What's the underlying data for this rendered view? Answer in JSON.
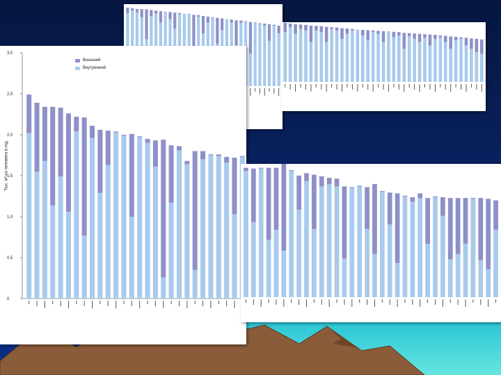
{
  "colors": {
    "external": "#8e90c8",
    "internal": "#a8caec",
    "background_top": "#071a4a",
    "background_bottom": "#0b2a7a",
    "sea": "#33d0d8",
    "mountain": "#8a5a38"
  },
  "chart_data": {
    "type": "bar",
    "stacked": true,
    "ylabel": "Тыс. м³ на человека в год",
    "ylim": [
      0,
      3.0
    ],
    "yticks": [
      "0",
      "0,5",
      "1,0",
      "1,5",
      "2,0",
      "2,5",
      "3,0"
    ],
    "legend": {
      "placement": "top-left",
      "entries": [
        "Внешний",
        "Внутренний"
      ]
    },
    "series": [
      {
        "name": "Внешний",
        "values": [
          0.47,
          0.84,
          0.66,
          1.2,
          0.84,
          1.2,
          0.18,
          1.44,
          0.15,
          0.77,
          0.42,
          0.01,
          0.01,
          1.01,
          0.01,
          0.05,
          0.32,
          1.68,
          0.7,
          0.05,
          0.04,
          1.45,
          0.1,
          0.01,
          0.02,
          0.07,
          0.69,
          0.01
        ]
      },
      {
        "name": "Внутренний",
        "values": [
          2.02,
          1.55,
          1.68,
          1.14,
          1.49,
          1.06,
          2.04,
          0.77,
          1.96,
          1.29,
          1.63,
          2.03,
          1.99,
          1.0,
          1.97,
          1.9,
          1.61,
          0.26,
          1.17,
          1.81,
          1.64,
          0.35,
          1.7,
          1.75,
          1.74,
          1.66,
          1.03,
          1.73
        ]
      }
    ],
    "lower_right_series": [
      {
        "name": "Внешний",
        "values": [
          0.04,
          0.69,
          0.01,
          0.93,
          0.8,
          1.16,
          0.01,
          0.44,
          0.1,
          0.7,
          0.13,
          0.08,
          0.1,
          0.93,
          0.01,
          0.01,
          0.54,
          0.9,
          0.01,
          0.41,
          0.9,
          0.01,
          0.06,
          0.06,
          0.59,
          0.01,
          0.24,
          0.79,
          0.72,
          0.59,
          0.01,
          0.8,
          0.91,
          0.38
        ]
      },
      {
        "name": "Внутренний",
        "values": [
          1.63,
          0.97,
          1.66,
          0.74,
          0.87,
          0.6,
          1.63,
          1.13,
          1.5,
          0.88,
          1.43,
          1.46,
          1.43,
          0.5,
          1.41,
          1.43,
          0.88,
          0.56,
          1.36,
          0.94,
          0.44,
          1.3,
          1.23,
          1.28,
          0.69,
          1.29,
          1.05,
          0.49,
          0.56,
          0.69,
          1.27,
          0.48,
          0.36,
          0.87
        ]
      }
    ],
    "upper_left_values": [
      2.6,
      2.58,
      2.55,
      2.55,
      2.54,
      2.52,
      2.5,
      2.48,
      2.46,
      2.45,
      2.43,
      2.42,
      2.4,
      2.38,
      2.36,
      2.35,
      2.32,
      2.3,
      2.28,
      2.26,
      2.24,
      2.22,
      2.2,
      2.18,
      2.17,
      2.15,
      2.12,
      2.1,
      2.08,
      2.07,
      2.05,
      2.03,
      2.0
    ],
    "upper_left_internal": [
      2.42,
      2.5,
      2.44,
      2.28,
      1.55,
      2.32,
      2.4,
      2.1,
      2.45,
      2.22,
      1.9,
      2.38,
      2.4,
      2.4,
      1.2,
      2.3,
      1.74,
      2.1,
      2.26,
      1.4,
      1.85,
      2.22,
      2.1,
      1.35,
      2.1,
      2.16,
      1.08,
      2.12,
      2.05,
      2.0,
      1.5,
      2.0,
      1.75
    ],
    "upper_right_values": [
      1.78,
      1.76,
      1.74,
      1.73,
      1.72,
      1.7,
      1.69,
      1.68,
      1.66,
      1.65,
      1.64,
      1.62,
      1.61,
      1.6,
      1.58,
      1.57,
      1.56,
      1.55,
      1.54,
      1.53,
      1.52,
      1.51,
      1.5,
      1.48,
      1.47,
      1.46,
      1.45,
      1.44,
      1.43,
      1.42,
      1.4,
      1.39,
      1.37,
      1.36,
      1.34,
      1.33,
      1.31,
      1.3,
      1.28
    ],
    "upper_right_internal": [
      1.5,
      1.65,
      1.45,
      1.6,
      1.55,
      1.2,
      1.55,
      1.5,
      1.2,
      1.6,
      1.55,
      1.3,
      1.45,
      1.55,
      1.58,
      1.4,
      1.25,
      1.5,
      1.45,
      1.2,
      1.5,
      1.35,
      1.4,
      1.0,
      1.38,
      1.3,
      1.2,
      1.33,
      1.1,
      1.3,
      1.35,
      1.2,
      1.0,
      1.25,
      1.3,
      1.1,
      1.0,
      0.9,
      0.85
    ]
  }
}
